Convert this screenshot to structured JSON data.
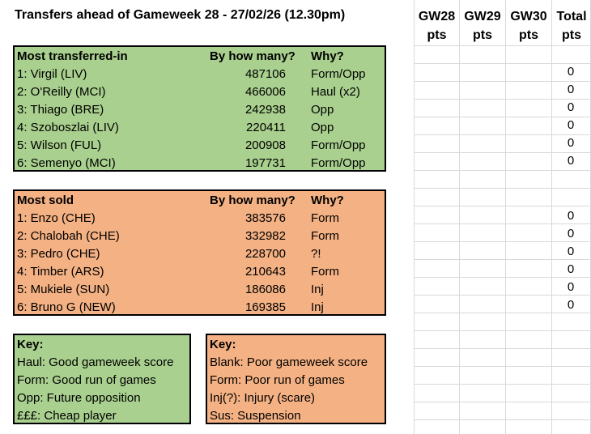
{
  "title": "Transfers ahead of Gameweek 28 - 27/02/26 (12.30pm)",
  "points_header": {
    "columns": [
      {
        "top": "GW28",
        "bottom": "pts"
      },
      {
        "top": "GW29",
        "bottom": "pts"
      },
      {
        "top": "GW30",
        "bottom": "pts"
      },
      {
        "top": "Total",
        "bottom": "pts"
      }
    ]
  },
  "transferred_in": {
    "heading": "Most transferred-in",
    "count_heading": "By how many?",
    "reason_heading": "Why?",
    "rows": [
      {
        "player": "1: Virgil (LIV)",
        "count": "487106",
        "reason": "Form/Opp",
        "total": "0"
      },
      {
        "player": "2: O'Reilly (MCI)",
        "count": "466006",
        "reason": "Haul (x2)",
        "total": "0"
      },
      {
        "player": "3: Thiago (BRE)",
        "count": "242938",
        "reason": "Opp",
        "total": "0"
      },
      {
        "player": "4: Szoboszlai (LIV)",
        "count": "220411",
        "reason": "Opp",
        "total": "0"
      },
      {
        "player": "5: Wilson (FUL)",
        "count": "200908",
        "reason": "Form/Opp",
        "total": "0"
      },
      {
        "player": "6: Semenyo (MCI)",
        "count": "197731",
        "reason": "Form/Opp",
        "total": "0"
      }
    ]
  },
  "sold": {
    "heading": "Most sold",
    "count_heading": "By how many?",
    "reason_heading": "Why?",
    "rows": [
      {
        "player": "1: Enzo (CHE)",
        "count": "383576",
        "reason": "Form",
        "total": "0"
      },
      {
        "player": "2: Chalobah (CHE)",
        "count": "332982",
        "reason": "Form",
        "total": "0"
      },
      {
        "player": "3: Pedro (CHE)",
        "count": "228700",
        "reason": "?!",
        "total": "0"
      },
      {
        "player": "4: Timber (ARS)",
        "count": "210643",
        "reason": "Form",
        "total": "0"
      },
      {
        "player": "5: Mukiele (SUN)",
        "count": "186086",
        "reason": "Inj",
        "total": "0"
      },
      {
        "player": "6: Bruno G (NEW)",
        "count": "169385",
        "reason": "Inj",
        "total": "0"
      }
    ]
  },
  "key_in": {
    "heading": "Key:",
    "lines": [
      "Haul: Good gameweek score",
      "Form: Good run of games",
      "Opp: Future opposition",
      "£££: Cheap player"
    ]
  },
  "key_out": {
    "heading": "Key:",
    "lines": [
      "Blank: Poor gameweek score",
      "Form: Poor run of games",
      "Inj(?): Injury (scare)",
      "Sus: Suspension"
    ]
  },
  "colors": {
    "green": "#a9d08e",
    "orange": "#f4b183",
    "grid": "#d9d9d9"
  }
}
